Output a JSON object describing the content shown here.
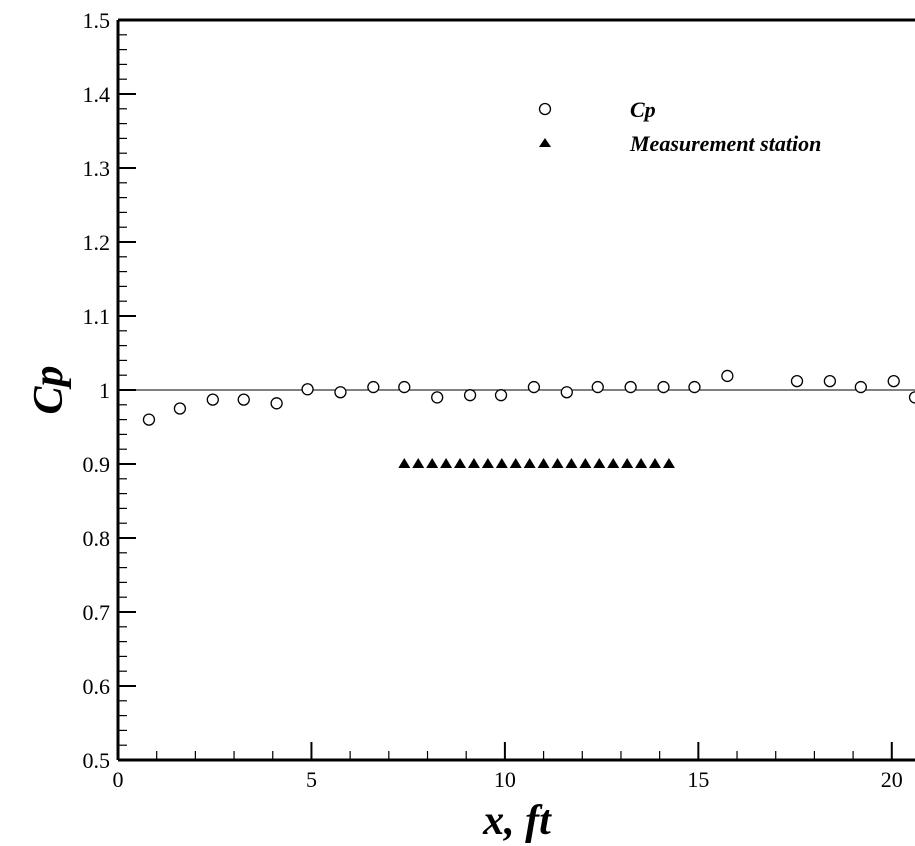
{
  "chart_data": {
    "type": "scatter",
    "xlabel": "x, ft",
    "ylabel": "Cp",
    "xlim": [
      0,
      20.6
    ],
    "ylim": [
      0.5,
      1.5
    ],
    "x_ticks": [
      0,
      5,
      10,
      15,
      20
    ],
    "x_tick_labels": [
      "0",
      "5",
      "10",
      "15",
      "20"
    ],
    "y_ticks": [
      0.5,
      0.6,
      0.7,
      0.8,
      0.9,
      1.0,
      1.1,
      1.2,
      1.3,
      1.4,
      1.5
    ],
    "y_tick_labels": [
      "0.5",
      "0.6",
      "0.7",
      "0.8",
      "0.9",
      "1",
      "1.1",
      "1.2",
      "1.3",
      "1.4",
      "1.5"
    ],
    "x_minor_step": 1,
    "y_minor_step": 0.02,
    "grid": false,
    "legend_position": "top-right",
    "reference_line": {
      "y": 1.0
    },
    "series": [
      {
        "name": "Cp",
        "marker": "open-circle",
        "color": "#000000",
        "x": [
          0.8,
          1.6,
          2.45,
          3.25,
          4.1,
          4.9,
          5.75,
          6.6,
          7.4,
          8.25,
          9.1,
          9.9,
          10.75,
          11.6,
          12.4,
          13.25,
          14.1,
          14.9,
          15.75,
          17.55,
          18.4,
          19.2,
          20.05,
          20.6
        ],
        "y": [
          0.96,
          0.975,
          0.987,
          0.987,
          0.982,
          1.001,
          0.997,
          1.004,
          1.004,
          0.99,
          0.993,
          0.993,
          1.004,
          0.997,
          1.004,
          1.004,
          1.004,
          1.004,
          1.019,
          1.012,
          1.012,
          1.004,
          1.012,
          0.99
        ]
      },
      {
        "name": "Measurement station",
        "marker": "filled-triangle",
        "color": "#000000",
        "x": [
          7.4,
          7.76,
          8.12,
          8.48,
          8.84,
          9.2,
          9.56,
          9.92,
          10.28,
          10.64,
          11.0,
          11.36,
          11.72,
          12.08,
          12.44,
          12.8,
          13.16,
          13.52,
          13.88,
          14.24
        ],
        "y": [
          0.9,
          0.9,
          0.9,
          0.9,
          0.9,
          0.9,
          0.9,
          0.9,
          0.9,
          0.9,
          0.9,
          0.9,
          0.9,
          0.9,
          0.9,
          0.9,
          0.9,
          0.9,
          0.9,
          0.9
        ]
      }
    ]
  }
}
